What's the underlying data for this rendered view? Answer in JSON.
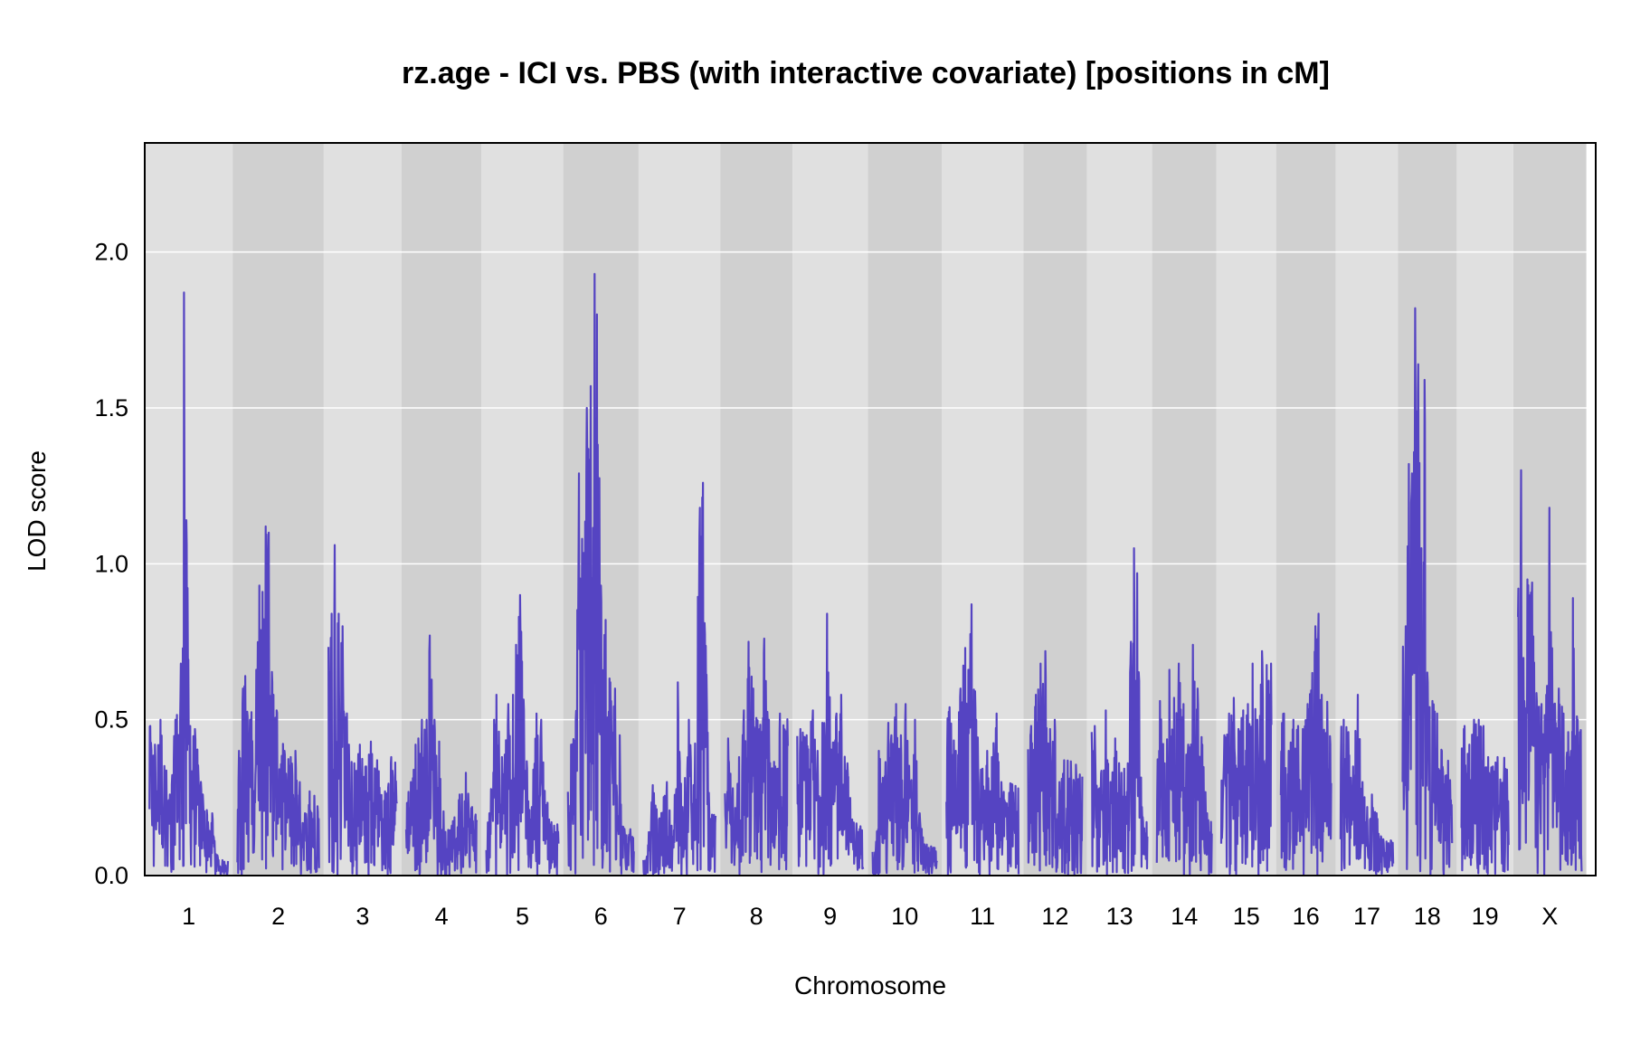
{
  "chart_data": {
    "type": "line",
    "title": "rz.age - ICI vs. PBS (with interactive covariate) [positions in cM]",
    "xlabel": "Chromosome",
    "ylabel": "LOD score",
    "ylim": [
      0,
      2.35
    ],
    "yticks": [
      "0.0",
      "0.5",
      "1.0",
      "1.5",
      "2.0"
    ],
    "grid": "horizontal",
    "line_color": "#5544c2",
    "band_colors": [
      "#e0e0e0",
      "#d0d0d0"
    ],
    "chromosomes": [
      {
        "name": "1",
        "length": 100,
        "peaks": [
          [
            1,
            0.48
          ],
          [
            7,
            0.42
          ],
          [
            14,
            0.5
          ],
          [
            26,
            0.26
          ],
          [
            33,
            0.5
          ],
          [
            40,
            0.68
          ],
          [
            44,
            1.87
          ],
          [
            47,
            1.14
          ],
          [
            52,
            0.48
          ],
          [
            58,
            0.47
          ],
          [
            68,
            0.26
          ],
          [
            73,
            0.21
          ],
          [
            80,
            0.2
          ],
          [
            88,
            0.05
          ]
        ]
      },
      {
        "name": "2",
        "length": 104,
        "peaks": [
          [
            2,
            0.4
          ],
          [
            7,
            0.6
          ],
          [
            10,
            0.64
          ],
          [
            16,
            0.5
          ],
          [
            24,
            0.66
          ],
          [
            28,
            0.93
          ],
          [
            32,
            0.91
          ],
          [
            36,
            1.12
          ],
          [
            40,
            1.1
          ],
          [
            46,
            0.58
          ],
          [
            50,
            0.53
          ],
          [
            60,
            0.4
          ],
          [
            68,
            0.38
          ],
          [
            74,
            0.4
          ],
          [
            86,
            0.2
          ],
          [
            92,
            0.27
          ]
        ]
      },
      {
        "name": "3",
        "length": 87,
        "peaks": [
          [
            4,
            0.84
          ],
          [
            8,
            1.06
          ],
          [
            13,
            0.84
          ],
          [
            18,
            0.8
          ],
          [
            26,
            0.42
          ],
          [
            33,
            0.36
          ],
          [
            40,
            0.42
          ],
          [
            48,
            0.35
          ],
          [
            54,
            0.43
          ],
          [
            62,
            0.37
          ],
          [
            72,
            0.27
          ],
          [
            80,
            0.38
          ]
        ]
      },
      {
        "name": "4",
        "length": 90,
        "peaks": [
          [
            6,
            0.3
          ],
          [
            12,
            0.42
          ],
          [
            20,
            0.5
          ],
          [
            26,
            0.5
          ],
          [
            30,
            0.77
          ],
          [
            36,
            0.5
          ],
          [
            42,
            0.43
          ],
          [
            50,
            0.14
          ],
          [
            58,
            0.16
          ],
          [
            68,
            0.26
          ],
          [
            76,
            0.33
          ],
          [
            84,
            0.22
          ]
        ]
      },
      {
        "name": "5",
        "length": 92,
        "peaks": [
          [
            4,
            0.2
          ],
          [
            10,
            0.5
          ],
          [
            13,
            0.58
          ],
          [
            20,
            0.38
          ],
          [
            28,
            0.55
          ],
          [
            34,
            0.58
          ],
          [
            38,
            0.74
          ],
          [
            43,
            0.9
          ],
          [
            48,
            0.53
          ],
          [
            56,
            0.18
          ],
          [
            64,
            0.52
          ],
          [
            70,
            0.5
          ],
          [
            80,
            0.18
          ]
        ]
      },
      {
        "name": "6",
        "length": 84,
        "peaks": [
          [
            4,
            0.42
          ],
          [
            10,
            0.5
          ],
          [
            14,
            1.29
          ],
          [
            18,
            1.08
          ],
          [
            24,
            1.5
          ],
          [
            29,
            1.57
          ],
          [
            34,
            1.93
          ],
          [
            37,
            1.8
          ],
          [
            42,
            0.93
          ],
          [
            48,
            0.82
          ],
          [
            54,
            0.62
          ],
          [
            60,
            0.6
          ],
          [
            66,
            0.45
          ],
          [
            72,
            0.15
          ]
        ]
      },
      {
        "name": "7",
        "length": 92,
        "peaks": [
          [
            4,
            0.05
          ],
          [
            12,
            0.29
          ],
          [
            20,
            0.18
          ],
          [
            30,
            0.3
          ],
          [
            38,
            0.12
          ],
          [
            44,
            0.62
          ],
          [
            50,
            0.22
          ],
          [
            58,
            0.5
          ],
          [
            64,
            0.29
          ],
          [
            72,
            1.18
          ],
          [
            76,
            1.26
          ],
          [
            84,
            0.2
          ]
        ]
      },
      {
        "name": "8",
        "length": 80,
        "peaks": [
          [
            4,
            0.44
          ],
          [
            10,
            0.28
          ],
          [
            18,
            0.38
          ],
          [
            24,
            0.53
          ],
          [
            30,
            0.75
          ],
          [
            36,
            0.6
          ],
          [
            44,
            0.47
          ],
          [
            50,
            0.76
          ],
          [
            56,
            0.5
          ],
          [
            64,
            0.35
          ],
          [
            70,
            0.52
          ]
        ]
      },
      {
        "name": "9",
        "length": 84,
        "peaks": [
          [
            4,
            0.47
          ],
          [
            12,
            0.45
          ],
          [
            20,
            0.53
          ],
          [
            26,
            0.4
          ],
          [
            32,
            0.49
          ],
          [
            38,
            0.84
          ],
          [
            44,
            0.4
          ],
          [
            50,
            0.52
          ],
          [
            56,
            0.58
          ],
          [
            64,
            0.36
          ],
          [
            70,
            0.18
          ]
        ]
      },
      {
        "name": "10",
        "length": 82,
        "peaks": [
          [
            4,
            0.08
          ],
          [
            8,
            0.4
          ],
          [
            14,
            0.3
          ],
          [
            20,
            0.49
          ],
          [
            24,
            0.45
          ],
          [
            30,
            0.55
          ],
          [
            36,
            0.45
          ],
          [
            42,
            0.55
          ],
          [
            48,
            0.3
          ],
          [
            54,
            0.5
          ],
          [
            60,
            0.2
          ],
          [
            66,
            0.1
          ]
        ]
      },
      {
        "name": "11",
        "length": 92,
        "peaks": [
          [
            4,
            0.54
          ],
          [
            12,
            0.4
          ],
          [
            18,
            0.6
          ],
          [
            24,
            0.73
          ],
          [
            28,
            0.66
          ],
          [
            32,
            0.87
          ],
          [
            38,
            0.5
          ],
          [
            44,
            0.34
          ],
          [
            52,
            0.4
          ],
          [
            58,
            0.38
          ],
          [
            64,
            0.52
          ],
          [
            70,
            0.3
          ]
        ]
      },
      {
        "name": "12",
        "length": 69,
        "peaks": [
          [
            4,
            0.48
          ],
          [
            10,
            0.58
          ],
          [
            16,
            0.68
          ],
          [
            22,
            0.72
          ],
          [
            28,
            0.47
          ],
          [
            34,
            0.5
          ],
          [
            40,
            0.3
          ],
          [
            46,
            0.37
          ]
        ]
      },
      {
        "name": "13",
        "length": 71,
        "peaks": [
          [
            4,
            0.48
          ],
          [
            10,
            0.28
          ],
          [
            18,
            0.53
          ],
          [
            24,
            0.3
          ],
          [
            30,
            0.44
          ],
          [
            38,
            0.33
          ],
          [
            46,
            0.36
          ],
          [
            50,
            0.75
          ],
          [
            54,
            1.05
          ],
          [
            58,
            0.97
          ],
          [
            64,
            0.22
          ]
        ]
      },
      {
        "name": "14",
        "length": 70,
        "peaks": [
          [
            4,
            0.56
          ],
          [
            10,
            0.36
          ],
          [
            16,
            0.66
          ],
          [
            22,
            0.57
          ],
          [
            28,
            0.68
          ],
          [
            34,
            0.55
          ],
          [
            40,
            0.42
          ],
          [
            46,
            0.74
          ],
          [
            52,
            0.6
          ],
          [
            58,
            0.42
          ],
          [
            64,
            0.2
          ]
        ]
      },
      {
        "name": "15",
        "length": 64,
        "peaks": [
          [
            4,
            0.45
          ],
          [
            10,
            0.52
          ],
          [
            16,
            0.57
          ],
          [
            22,
            0.47
          ],
          [
            28,
            0.53
          ],
          [
            34,
            0.55
          ],
          [
            40,
            0.68
          ],
          [
            46,
            0.5
          ],
          [
            52,
            0.72
          ]
        ]
      },
      {
        "name": "16",
        "length": 64,
        "peaks": [
          [
            4,
            0.52
          ],
          [
            10,
            0.4
          ],
          [
            16,
            0.5
          ],
          [
            22,
            0.48
          ],
          [
            28,
            0.47
          ],
          [
            34,
            0.55
          ],
          [
            40,
            0.65
          ],
          [
            44,
            0.8
          ],
          [
            48,
            0.84
          ],
          [
            52,
            0.58
          ]
        ]
      },
      {
        "name": "17",
        "length": 67,
        "peaks": [
          [
            4,
            0.5
          ],
          [
            10,
            0.46
          ],
          [
            16,
            0.35
          ],
          [
            22,
            0.58
          ],
          [
            28,
            0.3
          ],
          [
            34,
            0.22
          ],
          [
            40,
            0.26
          ],
          [
            46,
            0.2
          ],
          [
            52,
            0.12
          ]
        ]
      },
      {
        "name": "18",
        "length": 63,
        "peaks": [
          [
            4,
            0.8
          ],
          [
            8,
            1.32
          ],
          [
            12,
            1.29
          ],
          [
            16,
            1.82
          ],
          [
            20,
            1.64
          ],
          [
            24,
            1.05
          ],
          [
            28,
            1.59
          ],
          [
            32,
            0.62
          ],
          [
            38,
            0.56
          ],
          [
            44,
            0.52
          ],
          [
            50,
            0.4
          ]
        ]
      },
      {
        "name": "19",
        "length": 60,
        "peaks": [
          [
            4,
            0.48
          ],
          [
            10,
            0.42
          ],
          [
            16,
            0.5
          ],
          [
            22,
            0.5
          ],
          [
            28,
            0.48
          ],
          [
            34,
            0.38
          ],
          [
            40,
            0.35
          ],
          [
            46,
            0.38
          ]
        ]
      },
      {
        "name": "X",
        "length": 81,
        "peaks": [
          [
            4,
            1.3
          ],
          [
            8,
            0.56
          ],
          [
            12,
            0.95
          ],
          [
            18,
            0.94
          ],
          [
            24,
            0.56
          ],
          [
            30,
            0.55
          ],
          [
            36,
            0.58
          ],
          [
            40,
            1.18
          ],
          [
            46,
            0.55
          ],
          [
            52,
            0.6
          ],
          [
            58,
            0.52
          ],
          [
            64,
            0.46
          ],
          [
            70,
            0.89
          ],
          [
            76,
            0.5
          ]
        ]
      }
    ]
  }
}
